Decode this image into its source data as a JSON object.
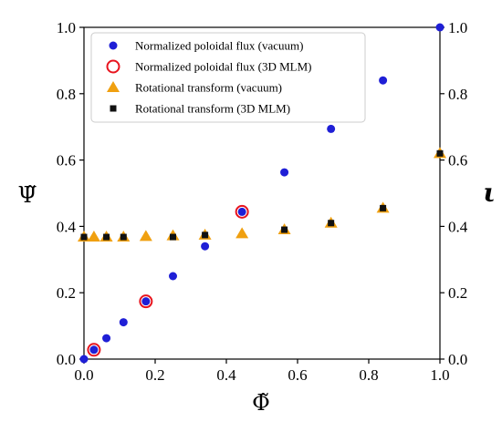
{
  "chart_data": {
    "type": "scatter",
    "xlabel": "Φ̃",
    "ylabel_left": "Ψ̃",
    "ylabel_right": "ι",
    "xlim": [
      0,
      1
    ],
    "ylim_left": [
      0,
      1
    ],
    "ylim_right": [
      0,
      1
    ],
    "x_ticks": [
      "0.0",
      "0.2",
      "0.4",
      "0.6",
      "0.8",
      "1.0"
    ],
    "y_ticks_left": [
      "0.0",
      "0.2",
      "0.4",
      "0.6",
      "0.8",
      "1.0"
    ],
    "y_ticks_right": [
      "0.0",
      "0.2",
      "0.4",
      "0.6",
      "0.8",
      "1.0"
    ],
    "legend_position": "top-center",
    "series": [
      {
        "name": "Normalized poloidal flux (vacuum)",
        "marker": "circle-filled",
        "color": "#1f1fd6",
        "axis": "left",
        "x": [
          0.0,
          0.028,
          0.063,
          0.111,
          0.174,
          0.25,
          0.34,
          0.444,
          0.563,
          0.694,
          0.84,
          1.0
        ],
        "y": [
          0.0,
          0.028,
          0.063,
          0.111,
          0.174,
          0.25,
          0.34,
          0.444,
          0.563,
          0.694,
          0.84,
          1.0
        ]
      },
      {
        "name": "Normalized poloidal flux (3D MLM)",
        "marker": "circle-open",
        "color": "#e8141e",
        "axis": "left",
        "x": [
          0.028,
          0.174,
          0.444
        ],
        "y": [
          0.028,
          0.174,
          0.444
        ]
      },
      {
        "name": "Rotational transform (vacuum)",
        "marker": "triangle",
        "color": "#f0a010",
        "axis": "right",
        "x": [
          0.0,
          0.028,
          0.063,
          0.111,
          0.174,
          0.25,
          0.34,
          0.444,
          0.563,
          0.694,
          0.84,
          1.0
        ],
        "y": [
          0.368,
          0.368,
          0.368,
          0.368,
          0.37,
          0.372,
          0.374,
          0.378,
          0.39,
          0.41,
          0.455,
          0.62
        ]
      },
      {
        "name": "Rotational transform (3D MLM)",
        "marker": "square",
        "color": "#111111",
        "axis": "right",
        "x": [
          0.0,
          0.063,
          0.111,
          0.25,
          0.34,
          0.563,
          0.694,
          0.84,
          1.0
        ],
        "y": [
          0.368,
          0.368,
          0.368,
          0.368,
          0.374,
          0.39,
          0.41,
          0.455,
          0.62
        ]
      }
    ]
  }
}
